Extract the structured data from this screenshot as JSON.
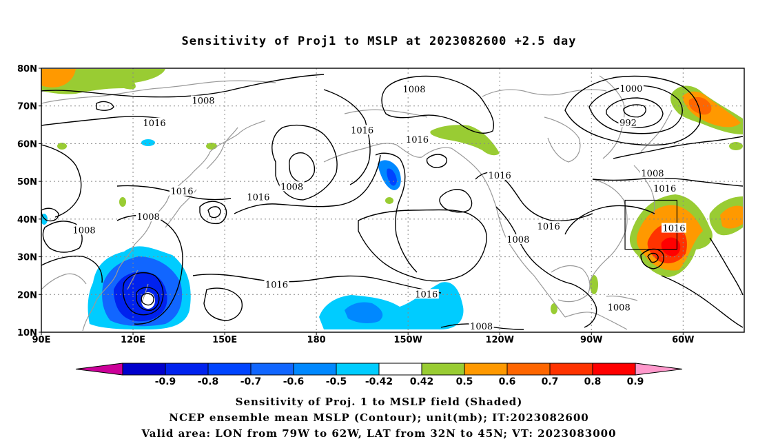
{
  "title": "Sensitivity of Proj1 to MSLP at 2023082600 +2.5 day",
  "axes": {
    "lat_labels": [
      "80N",
      "70N",
      "60N",
      "50N",
      "40N",
      "30N",
      "20N",
      "10N"
    ],
    "lon_labels": [
      "90E",
      "120E",
      "150E",
      "180",
      "150W",
      "120W",
      "90W",
      "60W"
    ],
    "lon_values_east": [
      90,
      120,
      150,
      180,
      210,
      240,
      270,
      300
    ],
    "lat_values": [
      80,
      70,
      60,
      50,
      40,
      30,
      20,
      10
    ],
    "lon_range_east": [
      90,
      320
    ],
    "lat_range": [
      10,
      80
    ],
    "grid": "dotted"
  },
  "contour_labels": [
    {
      "text": "1008",
      "lon": 143,
      "lat": 71.3
    },
    {
      "text": "1008",
      "lon": 212,
      "lat": 74.3
    },
    {
      "text": "1000",
      "lon": 283,
      "lat": 74.5
    },
    {
      "text": "992",
      "lon": 282,
      "lat": 65.5
    },
    {
      "text": "1016",
      "lon": 127,
      "lat": 65.4
    },
    {
      "text": "1016",
      "lon": 195,
      "lat": 63.5
    },
    {
      "text": "1016",
      "lon": 213,
      "lat": 61.0
    },
    {
      "text": "1008",
      "lon": 290,
      "lat": 52.0
    },
    {
      "text": "1016",
      "lon": 294,
      "lat": 48.0
    },
    {
      "text": "1016",
      "lon": 161,
      "lat": 45.7
    },
    {
      "text": "1008",
      "lon": 172,
      "lat": 48.5
    },
    {
      "text": "1016",
      "lon": 136,
      "lat": 47.3
    },
    {
      "text": "1008",
      "lon": 125,
      "lat": 40.5
    },
    {
      "text": "1008",
      "lon": 104,
      "lat": 37.0
    },
    {
      "text": "1016",
      "lon": 240,
      "lat": 51.5
    },
    {
      "text": "1016",
      "lon": 256,
      "lat": 38.0
    },
    {
      "text": "1008",
      "lon": 246,
      "lat": 34.5
    },
    {
      "text": "1016",
      "lon": 297,
      "lat": 37.5
    },
    {
      "text": "1016",
      "lon": 167,
      "lat": 22.5
    },
    {
      "text": "1016",
      "lon": 216,
      "lat": 20.0
    },
    {
      "text": "1008",
      "lon": 279,
      "lat": 16.5
    },
    {
      "text": "1008",
      "lon": 234,
      "lat": 11.5
    }
  ],
  "valid_area": {
    "lon": [
      -79,
      -62
    ],
    "lat": [
      32,
      45
    ]
  },
  "colorbar": {
    "labels": [
      "-0.9",
      "-0.8",
      "-0.7",
      "-0.6",
      "-0.5",
      "-0.42",
      "0.42",
      "0.5",
      "0.6",
      "0.7",
      "0.8",
      "0.9"
    ],
    "colors": [
      "#0000cc",
      "#0022ee",
      "#0044ff",
      "#1166ff",
      "#0088ff",
      "#00ccff",
      "#ffffff",
      "#99cc33",
      "#ff9900",
      "#ff6600",
      "#ff3300",
      "#ff0000"
    ],
    "low_triangle_color": "#cc0099",
    "high_triangle_color": "#ff99cc"
  },
  "footer": {
    "line1": "Sensitivity of Proj. 1 to MSLP field (Shaded)",
    "line2": "NCEP ensemble mean MSLP (Contour); unit(mb); IT:2023082600",
    "line3": "Valid area: LON from 79W to 62W, LAT from 32N to 45N; VT: 2023083000"
  }
}
